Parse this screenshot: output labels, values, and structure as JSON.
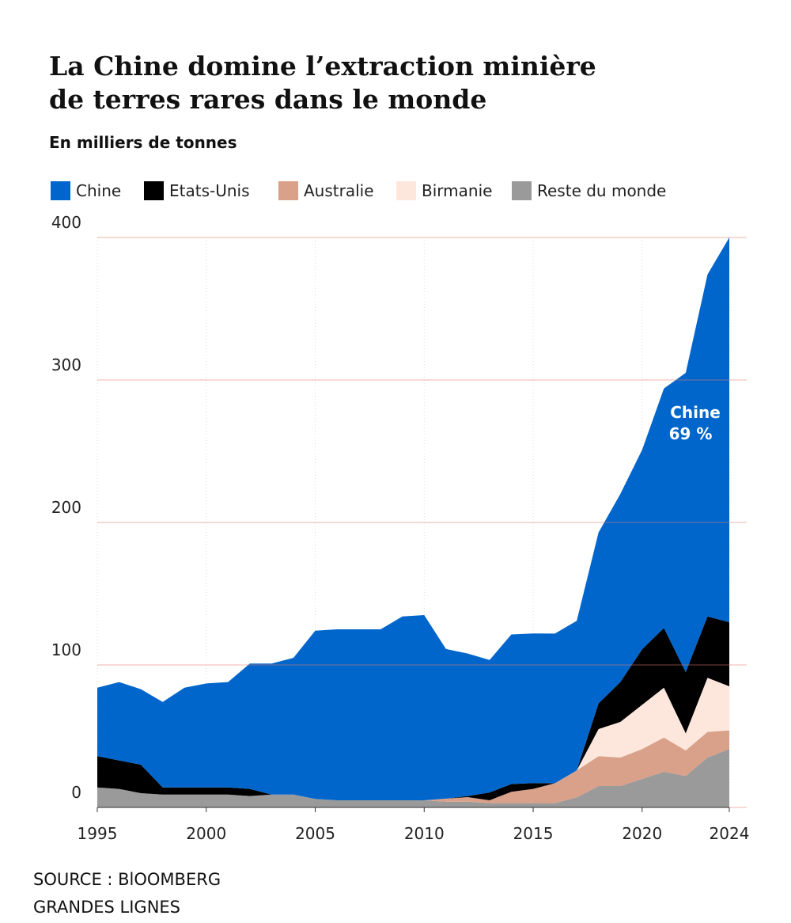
{
  "chart_data": {
    "type": "stacked-area",
    "title": [
      "La Chine domine l’extraction minière",
      "de terres rares dans le monde"
    ],
    "subtitle": "En milliers de tonnes",
    "x": [
      1995,
      1996,
      1997,
      1998,
      1999,
      2000,
      2001,
      2002,
      2003,
      2004,
      2005,
      2006,
      2007,
      2008,
      2009,
      2010,
      2011,
      2012,
      2013,
      2014,
      2015,
      2016,
      2017,
      2018,
      2019,
      2020,
      2021,
      2022,
      2023,
      2024
    ],
    "series": [
      {
        "name": "Reste du monde",
        "color": "#9a9a9a",
        "values": [
          14,
          13,
          10,
          9,
          9,
          9,
          9,
          8,
          9,
          9,
          6,
          5,
          5,
          5,
          5,
          5,
          4,
          4,
          3,
          3,
          3,
          3,
          7,
          15,
          15,
          20,
          25,
          22,
          35,
          41
        ]
      },
      {
        "name": "Australie",
        "color": "#d9a08a",
        "values": [
          0,
          0,
          0,
          0,
          0,
          0,
          0,
          0,
          0,
          0,
          0,
          0,
          0,
          0,
          0,
          0,
          2.2,
          3.2,
          2,
          8,
          10,
          14,
          19,
          21,
          20,
          21,
          24,
          18,
          18,
          13
        ]
      },
      {
        "name": "Birmanie",
        "color": "#fde7dd",
        "values": [
          0,
          0,
          0,
          0,
          0,
          0,
          0,
          0,
          0,
          0,
          0,
          0,
          0,
          0,
          0,
          0,
          0,
          0,
          0,
          0,
          0,
          0,
          0,
          19,
          25,
          31,
          35,
          12,
          38,
          31
        ]
      },
      {
        "name": "Etats-Unis",
        "color": "#000000",
        "values": [
          22,
          20,
          20,
          5,
          5,
          5,
          5,
          5,
          0,
          0,
          0,
          0,
          0,
          0,
          0,
          0,
          0,
          0.8,
          5.5,
          5.4,
          4.1,
          0,
          0,
          18,
          28,
          39,
          42,
          43,
          43,
          45
        ]
      },
      {
        "name": "Chine",
        "color": "#0066cc",
        "values": [
          48,
          55,
          53,
          60,
          70,
          73,
          74,
          88,
          92,
          96,
          118,
          120,
          120,
          120,
          129,
          130,
          105,
          100,
          93,
          105,
          105,
          105,
          105,
          120,
          132,
          140,
          168,
          210,
          240,
          270
        ]
      }
    ],
    "legend_order": [
      4,
      3,
      1,
      2,
      0
    ],
    "xlim": [
      1995,
      2024
    ],
    "xticks": [
      1995,
      2000,
      2005,
      2010,
      2015,
      2020,
      2024
    ],
    "ylim": [
      0,
      400
    ],
    "yticks": [
      0,
      100,
      200,
      300,
      400
    ],
    "grid": true,
    "annotation": [
      "Chine",
      "69 %"
    ],
    "source": [
      "SOURCE : BlOOMBERG",
      "GRANDES LIGNES"
    ]
  }
}
